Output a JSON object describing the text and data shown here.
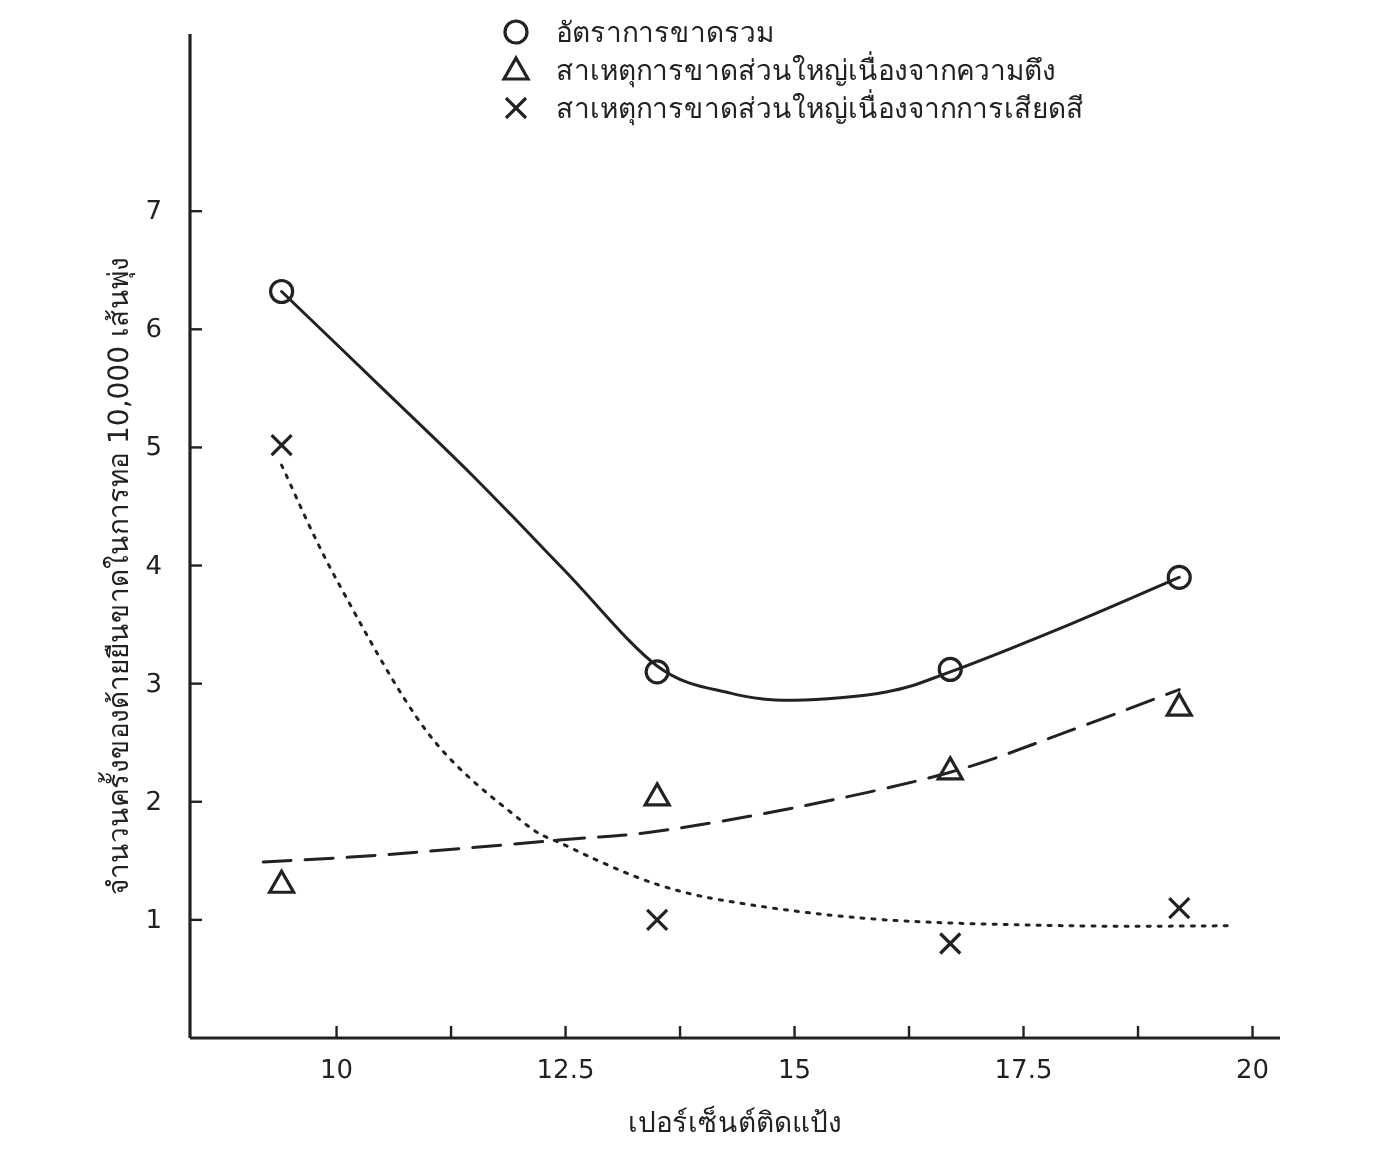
{
  "chart_data": {
    "type": "scatter",
    "xlabel": "เปอร์เซ็นต์ติดแป้ง",
    "ylabel": "จำนวนครั้งของด้ายยืนขาดในการทอ 10,000 เส้นพุ่ง",
    "xlim": [
      8.4,
      20.3
    ],
    "ylim": [
      0,
      8.5
    ],
    "xticks": [
      {
        "value": 10,
        "label": "10"
      },
      {
        "value": 11.25,
        "label": null
      },
      {
        "value": 12.5,
        "label": "12.5"
      },
      {
        "value": 13.75,
        "label": null
      },
      {
        "value": 15,
        "label": "15"
      },
      {
        "value": 16.25,
        "label": null
      },
      {
        "value": 17.5,
        "label": "17.5"
      },
      {
        "value": 18.75,
        "label": null
      },
      {
        "value": 20,
        "label": "20"
      }
    ],
    "yticks": [
      1,
      2,
      3,
      4,
      5,
      6,
      7
    ],
    "legend": "top",
    "grid": false,
    "series": [
      {
        "name": "อัตราการขาดรวม",
        "color": "#222222",
        "marker": "circle",
        "x": [
          9.4,
          13.5,
          16.7,
          19.2
        ],
        "values": [
          6.32,
          3.1,
          3.12,
          3.9
        ]
      },
      {
        "name": "สาเหตุการขาดส่วนใหญ่เนื่องจากความตึง",
        "color": "#222222",
        "marker": "triangle",
        "x": [
          9.4,
          13.5,
          16.7,
          19.2
        ],
        "values": [
          1.31,
          2.05,
          2.27,
          2.81
        ]
      },
      {
        "name": "สาเหตุการขาดส่วนใหญ่เนื่องจากการเสียดสี",
        "color": "#222222",
        "marker": "cross",
        "x": [
          9.4,
          13.5,
          16.7,
          19.2
        ],
        "values": [
          5.02,
          1.0,
          0.8,
          1.1
        ]
      },
      {
        "type": "line",
        "color": "#222222",
        "marker": "none",
        "line_style": "solid",
        "x": [
          9.4,
          10.5,
          11.5,
          12.5,
          13.5,
          14.3,
          15,
          16,
          16.7,
          18,
          19.2
        ],
        "values": [
          6.32,
          5.5,
          4.75,
          3.95,
          3.15,
          2.92,
          2.86,
          2.93,
          3.1,
          3.5,
          3.9
        ]
      },
      {
        "type": "line",
        "color": "#222222",
        "marker": "none",
        "line_style": "dashed",
        "x": [
          9.2,
          10.5,
          12.5,
          13.5,
          15,
          16.7,
          18,
          19.2
        ],
        "values": [
          1.49,
          1.55,
          1.68,
          1.75,
          1.95,
          2.25,
          2.6,
          2.95
        ]
      },
      {
        "type": "line",
        "color": "#222222",
        "marker": "none",
        "line_style": "dotted",
        "x": [
          9.4,
          10,
          11,
          12,
          12.5,
          13.5,
          14.5,
          16,
          18,
          19.8
        ],
        "values": [
          4.85,
          3.88,
          2.58,
          1.85,
          1.63,
          1.3,
          1.13,
          1.0,
          0.95,
          0.95
        ]
      }
    ]
  }
}
